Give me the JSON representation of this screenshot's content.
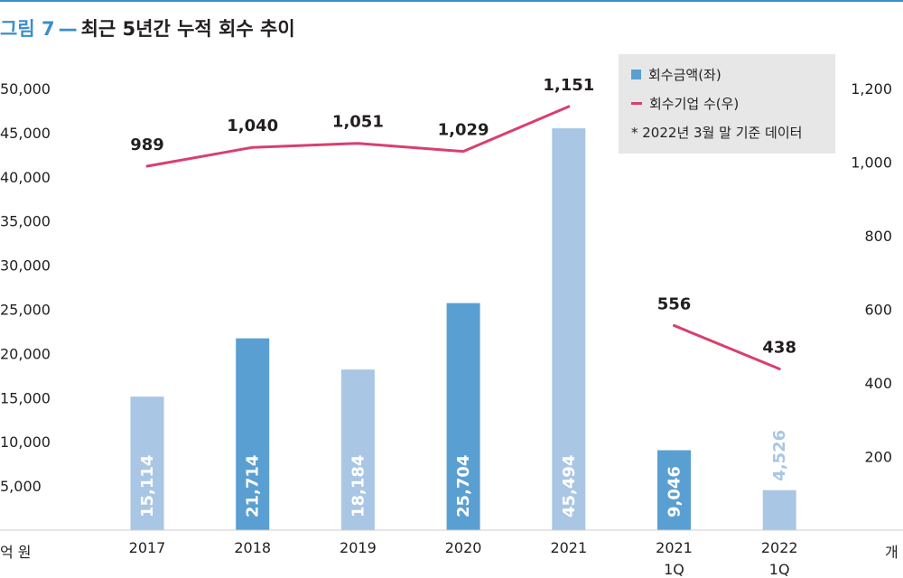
{
  "title": {
    "figure": "그림 7",
    "separator": "—",
    "text": "최근 5년간 누적 회수 추이"
  },
  "colors": {
    "accent": "#3a8fcb",
    "bar_light": "#a9c6e4",
    "bar_dark": "#5a9fd2",
    "line": "#d93f6e",
    "legend_bg": "#e7e7e8"
  },
  "legend": {
    "bar_label": "회수금액(좌)",
    "line_label": "회수기업 수(우)",
    "note": "* 2022년 3월 말 기준 데이터"
  },
  "units": {
    "left": "억 원",
    "right": "개"
  },
  "chart_data": {
    "type": "bar",
    "title": "최근 5년간 누적 회수 추이",
    "categories": [
      [
        "2017"
      ],
      [
        "2018"
      ],
      [
        "2019"
      ],
      [
        "2020"
      ],
      [
        "2021"
      ],
      [
        "2021",
        "1Q"
      ],
      [
        "2022",
        "1Q"
      ]
    ],
    "bar_series": {
      "name": "회수금액(좌)",
      "values": [
        15114,
        21714,
        18184,
        25704,
        45494,
        9046,
        4526
      ],
      "labels": [
        "15,114",
        "21,714",
        "18,184",
        "25,704",
        "45,494",
        "9,046",
        "4,526"
      ],
      "shade": [
        "light",
        "dark",
        "light",
        "dark",
        "light",
        "dark",
        "light"
      ]
    },
    "line_series": {
      "name": "회수기업 수(우)",
      "values": [
        989,
        1040,
        1051,
        1029,
        1151,
        556,
        438
      ],
      "labels": [
        "989",
        "1,040",
        "1,051",
        "1,029",
        "1,151",
        "556",
        "438"
      ],
      "segments": [
        [
          0,
          4
        ],
        [
          5,
          6
        ]
      ]
    },
    "left_axis": {
      "ylim": [
        0,
        50000
      ],
      "ticks": [
        5000,
        10000,
        15000,
        20000,
        25000,
        30000,
        35000,
        40000,
        45000,
        50000
      ],
      "tick_labels": [
        "5,000",
        "10,000",
        "15,000",
        "20,000",
        "25,000",
        "30,000",
        "35,000",
        "40,000",
        "45,000",
        "50,000"
      ]
    },
    "right_axis": {
      "ylim": [
        0,
        1200
      ],
      "ticks": [
        200,
        400,
        600,
        800,
        1000,
        1200
      ],
      "tick_labels": [
        "200",
        "400",
        "600",
        "800",
        "1,000",
        "1,200"
      ]
    },
    "grid": false,
    "legend_position": "top-right"
  }
}
